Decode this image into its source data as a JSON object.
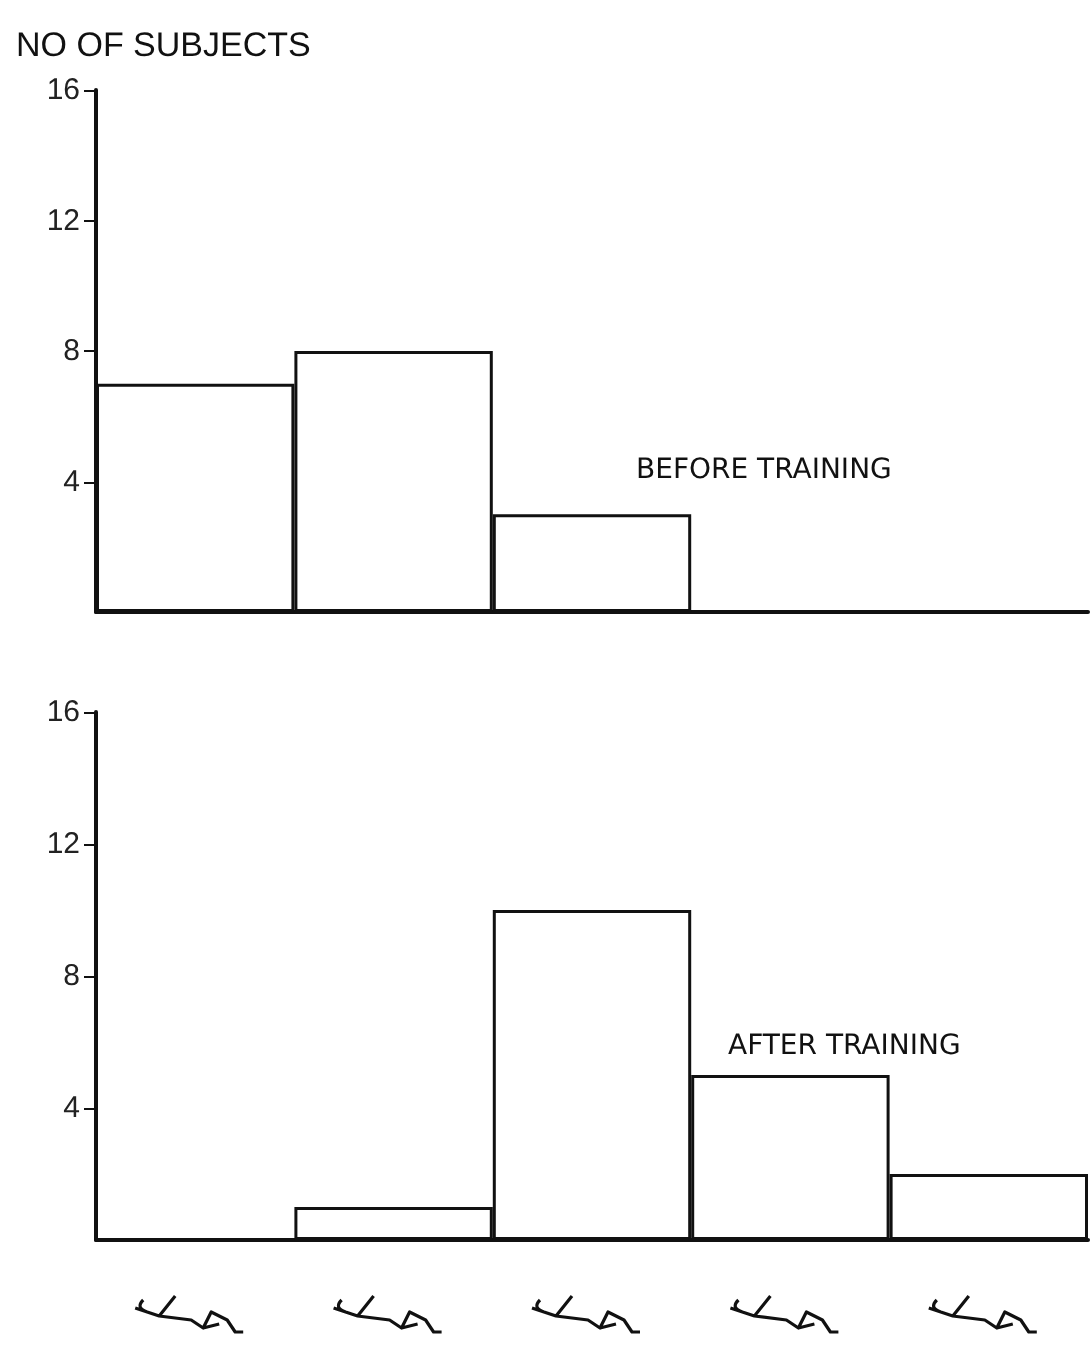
{
  "chart_data": [
    {
      "type": "bar",
      "ylabel": "NO OF SUBJECTS",
      "categories": [
        null,
        null,
        null,
        null,
        null
      ],
      "values": [
        7,
        8,
        3,
        0,
        0
      ],
      "color": "#ffffff",
      "ylim": [
        0,
        16
      ],
      "yticks": [
        4,
        8,
        12,
        16
      ],
      "tick_labels": "y",
      "grid": false,
      "annotations": [
        "BEFORE TRAINING"
      ]
    },
    {
      "type": "bar",
      "categories": [
        null,
        null,
        null,
        null,
        null
      ],
      "values": [
        0,
        1,
        10,
        5,
        2
      ],
      "color": "#ffffff",
      "ylim": [
        0,
        16
      ],
      "yticks": [
        4,
        8,
        12,
        16
      ],
      "tick_labels": "y",
      "grid": false,
      "annotations": [
        "AFTER TRAINING"
      ]
    }
  ]
}
